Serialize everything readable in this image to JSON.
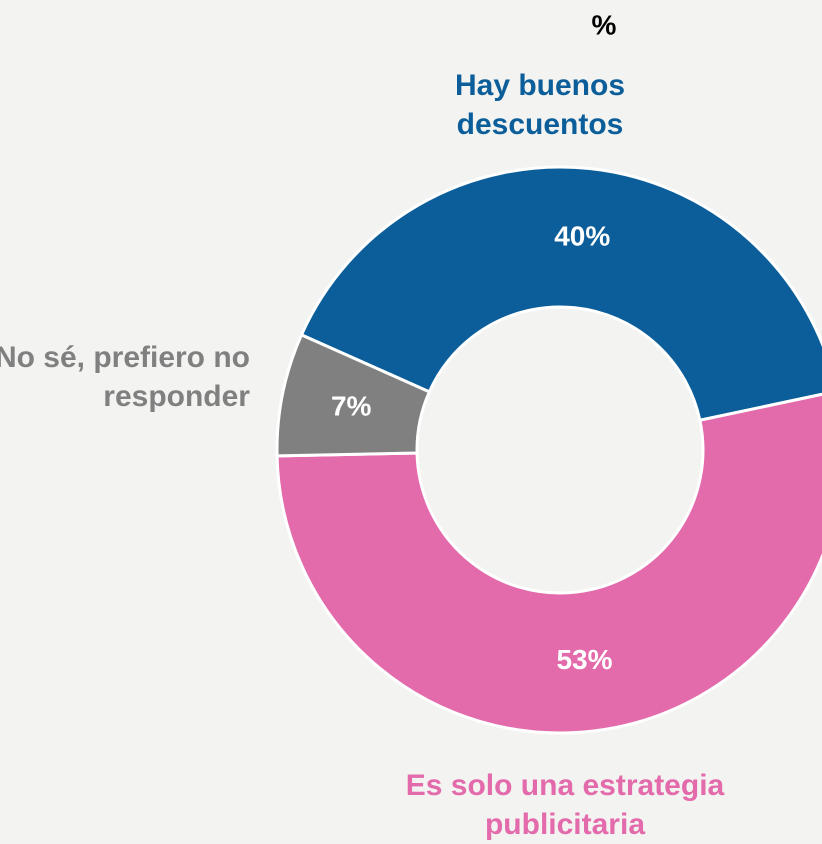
{
  "chart_data": {
    "type": "donut",
    "title": "%",
    "categories": [
      "Hay buenos descuentos",
      "Es solo una estrategia publicitaria",
      "No sé, prefiero no responder"
    ],
    "values": [
      40,
      53,
      7
    ],
    "value_labels": [
      "40%",
      "53%",
      "7%"
    ],
    "colors": [
      "#0b5e9a",
      "#e36aab",
      "#808080"
    ]
  }
}
